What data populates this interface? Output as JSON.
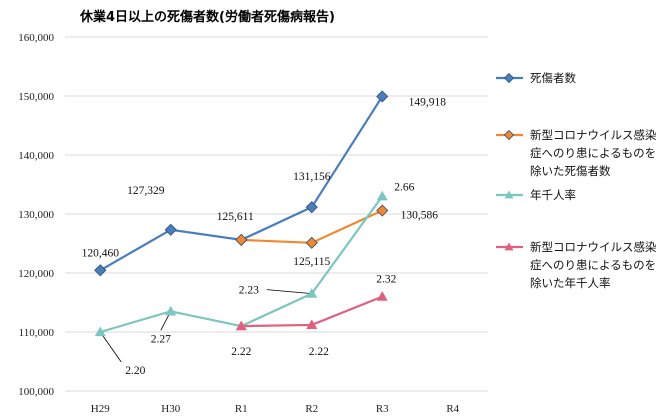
{
  "chart_data": {
    "type": "line",
    "title": "休業4日以上の死傷者数(労働者死傷病報告)",
    "categories": [
      "H29",
      "H30",
      "R1",
      "R2",
      "R3",
      "R4"
    ],
    "ylim": [
      100000,
      160000
    ],
    "y_ticks": [
      "100,000",
      "110,000",
      "120,000",
      "130,000",
      "140,000",
      "150,000",
      "160,000"
    ],
    "grid": true,
    "legend_position": "right",
    "series": [
      {
        "name": "死傷者数",
        "color": "#4a7ebb",
        "marker": "diamond",
        "values": [
          120460,
          127329,
          125611,
          131156,
          149918,
          null
        ],
        "labels": [
          "120,460",
          "127,329",
          "125,611",
          "131,156",
          "149,918",
          ""
        ]
      },
      {
        "name": "新型コロナウイルス感染症へのり患によるものを除いた死傷者数",
        "legend_lines": [
          "新型コロナウイルス感染",
          "症へのり患によるものを",
          "除いた死傷者数"
        ],
        "color": "#f0892d",
        "marker": "diamond",
        "values": [
          null,
          null,
          125611,
          125115,
          130586,
          null
        ],
        "labels": [
          "",
          "",
          "",
          "125,115",
          "130,586",
          ""
        ]
      },
      {
        "name": "年千人率",
        "color": "#7cc6c2",
        "marker": "triangle",
        "rates": [
          2.2,
          2.27,
          2.22,
          2.23,
          2.66,
          null
        ],
        "values": [
          110000,
          113500,
          111000,
          116500,
          133000,
          null
        ],
        "labels": [
          "2.20",
          "2.27",
          "2.22",
          "2.23",
          "2.66",
          ""
        ]
      },
      {
        "name": "新型コロナウイルス感染症へのり患によるものを除いた年千人率",
        "legend_lines": [
          "新型コロナウイルス感染",
          "症へのり患によるものを",
          "除いた年千人率"
        ],
        "color": "#e0607e",
        "marker": "triangle",
        "rates": [
          null,
          null,
          2.22,
          2.22,
          2.32,
          null
        ],
        "values": [
          null,
          null,
          111000,
          111200,
          116000,
          null
        ],
        "labels": [
          "",
          "",
          "",
          "2.22",
          "2.32",
          ""
        ]
      }
    ]
  }
}
